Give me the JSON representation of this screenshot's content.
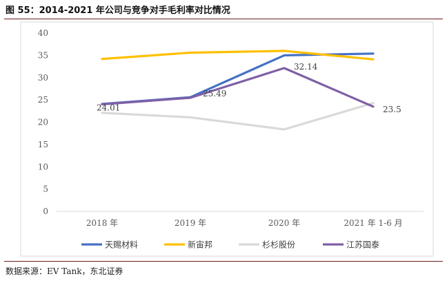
{
  "figure": {
    "title": "图 55：2014-2021 年公司与竞争对手毛利率对比情况",
    "source": "数据来源：EV Tank，东北证券"
  },
  "chart_data": {
    "type": "line",
    "categories": [
      "2018 年",
      "2019 年",
      "2020 年",
      "2021 年 1-6 月"
    ],
    "ylim": [
      0,
      40
    ],
    "yticks": [
      0,
      5,
      10,
      15,
      20,
      25,
      30,
      35,
      40
    ],
    "xlabel": "",
    "ylabel": "",
    "grid": false,
    "legend": "bottom",
    "series": [
      {
        "name": "天赐材料",
        "color": "#4472C4",
        "values": [
          24.1,
          25.6,
          35.0,
          35.4
        ],
        "labels": []
      },
      {
        "name": "新宙邦",
        "color": "#FFC000",
        "values": [
          34.2,
          35.6,
          36.0,
          34.1
        ],
        "labels": []
      },
      {
        "name": "杉杉股份",
        "color": "#D9D9D9",
        "values": [
          22.1,
          21.1,
          18.4,
          24.3
        ],
        "labels": []
      },
      {
        "name": "江苏国泰",
        "color": "#7F5FA6",
        "values": [
          24.01,
          25.49,
          32.14,
          23.5
        ],
        "labels": [
          "24.01",
          "25.49",
          "32.14",
          "23.5"
        ]
      }
    ]
  }
}
